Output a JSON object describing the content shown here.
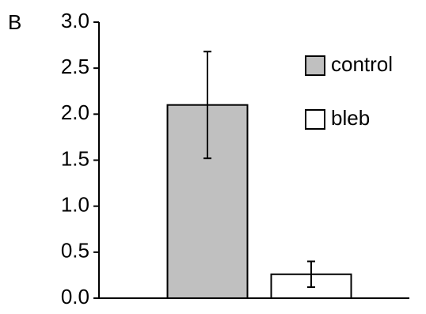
{
  "chart_data": {
    "type": "bar",
    "panel_label": "B",
    "categories": [
      null,
      null
    ],
    "series": [
      {
        "name": "control",
        "color": "#c0c0c0",
        "values": [
          2.1,
          null
        ],
        "errors": [
          0.58,
          null
        ]
      },
      {
        "name": "bleb",
        "color": "#ffffff",
        "values": [
          null,
          0.26
        ],
        "errors": [
          null,
          0.14
        ]
      }
    ],
    "ylim": [
      0,
      3
    ],
    "yticks": [
      {
        "value": 0,
        "label": "0.0"
      },
      0.5,
      {
        "value": 1,
        "label": "1.0"
      },
      1.5,
      {
        "value": 2,
        "label": "2.0"
      },
      2.5,
      {
        "value": 3,
        "label": "3.0"
      }
    ],
    "grid": false,
    "legend": "top-right"
  }
}
